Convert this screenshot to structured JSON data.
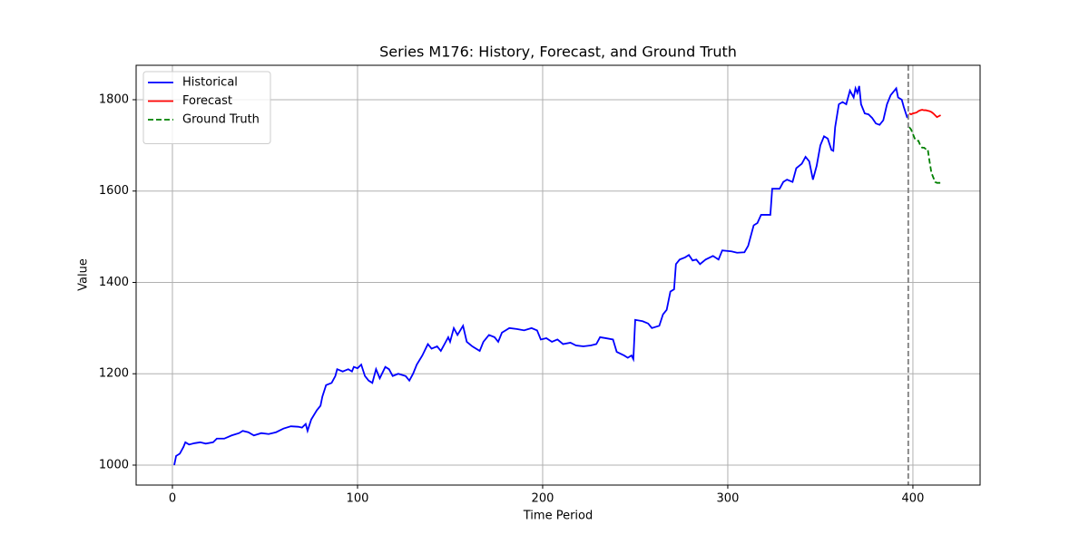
{
  "chart_data": {
    "type": "line",
    "title": "Series M176: History, Forecast, and Ground Truth",
    "xlabel": "Time Period",
    "ylabel": "Value",
    "xlim": [
      -19.6,
      436.3
    ],
    "ylim": [
      956.3,
      1875.4
    ],
    "xticks": [
      0,
      100,
      200,
      300,
      400
    ],
    "yticks": [
      1000,
      1200,
      1400,
      1600,
      1800
    ],
    "grid": true,
    "legend": "upper left",
    "vline_x": 397.5,
    "vline_color": "#808080",
    "series": [
      {
        "name": "Historical",
        "color": "#0000ff",
        "linestyle": "solid",
        "x": [
          1,
          2,
          4,
          6,
          7,
          9,
          12,
          15,
          18,
          22,
          24,
          28,
          32,
          36,
          38,
          41,
          44,
          48,
          52,
          56,
          60,
          64,
          68,
          70,
          72,
          73,
          75,
          78,
          80,
          81,
          83,
          86,
          88,
          89,
          92,
          95,
          97,
          98,
          100,
          102,
          104,
          106,
          108,
          110,
          112,
          115,
          117,
          119,
          122,
          126,
          128,
          130,
          132,
          135,
          138,
          140,
          143,
          145,
          147,
          149,
          150,
          152,
          154,
          157,
          159,
          162,
          166,
          168,
          171,
          174,
          176,
          178,
          180,
          182,
          186,
          190,
          194,
          197,
          199,
          202,
          205,
          208,
          211,
          215,
          218,
          222,
          226,
          229,
          231,
          234,
          238,
          240,
          244,
          246,
          248,
          249,
          250,
          254,
          257,
          259,
          263,
          265,
          267,
          269,
          271,
          272,
          274,
          277,
          279,
          281,
          283,
          285,
          288,
          292,
          295,
          297,
          302,
          305,
          309,
          311,
          314,
          316,
          318,
          323,
          324,
          328,
          330,
          332,
          335,
          337,
          340,
          342,
          344,
          346,
          348,
          350,
          352,
          354,
          356,
          357,
          358,
          360,
          362,
          364,
          366,
          368,
          369,
          370,
          371,
          372,
          374,
          376,
          378,
          380,
          382,
          384,
          386,
          388,
          390,
          391,
          392,
          394,
          395,
          397
        ],
        "values": [
          1000,
          1020,
          1025,
          1040,
          1050,
          1045,
          1048,
          1050,
          1047,
          1050,
          1058,
          1058,
          1065,
          1070,
          1075,
          1072,
          1065,
          1070,
          1068,
          1072,
          1080,
          1085,
          1084,
          1082,
          1090,
          1075,
          1100,
          1120,
          1130,
          1150,
          1175,
          1180,
          1195,
          1210,
          1205,
          1210,
          1205,
          1215,
          1212,
          1220,
          1195,
          1185,
          1180,
          1210,
          1190,
          1215,
          1210,
          1195,
          1200,
          1195,
          1185,
          1200,
          1220,
          1240,
          1265,
          1255,
          1260,
          1250,
          1265,
          1280,
          1270,
          1300,
          1285,
          1305,
          1270,
          1260,
          1250,
          1270,
          1285,
          1280,
          1270,
          1290,
          1295,
          1300,
          1298,
          1295,
          1300,
          1295,
          1275,
          1278,
          1270,
          1275,
          1265,
          1268,
          1262,
          1260,
          1262,
          1265,
          1280,
          1278,
          1275,
          1248,
          1240,
          1235,
          1240,
          1232,
          1318,
          1315,
          1310,
          1300,
          1305,
          1330,
          1340,
          1380,
          1385,
          1440,
          1450,
          1455,
          1460,
          1448,
          1450,
          1440,
          1450,
          1458,
          1450,
          1470,
          1468,
          1465,
          1466,
          1480,
          1525,
          1530,
          1548,
          1548,
          1605,
          1605,
          1620,
          1625,
          1620,
          1650,
          1660,
          1675,
          1665,
          1625,
          1655,
          1700,
          1720,
          1715,
          1690,
          1688,
          1740,
          1790,
          1795,
          1790,
          1820,
          1805,
          1825,
          1815,
          1830,
          1790,
          1770,
          1768,
          1760,
          1748,
          1745,
          1755,
          1790,
          1810,
          1820,
          1825,
          1805,
          1800,
          1785,
          1760
        ]
      },
      {
        "name": "Forecast",
        "color": "#ff0000",
        "linestyle": "solid",
        "x": [
          398,
          399,
          400,
          401,
          402,
          403,
          404,
          405,
          406,
          407,
          408,
          409,
          410,
          411,
          412,
          413,
          414,
          415
        ],
        "values": [
          1770,
          1768,
          1770,
          1771,
          1772,
          1775,
          1777,
          1778,
          1777,
          1777,
          1776,
          1775,
          1773,
          1770,
          1766,
          1762,
          1764,
          1766
        ]
      },
      {
        "name": "Ground Truth",
        "color": "#008000",
        "linestyle": "dashed",
        "x": [
          398,
          399,
          400,
          401,
          402,
          403,
          404,
          405,
          406,
          407,
          408,
          409,
          410,
          411,
          412,
          413,
          414,
          415
        ],
        "values": [
          1740,
          1735,
          1725,
          1715,
          1710,
          1710,
          1700,
          1695,
          1695,
          1692,
          1692,
          1665,
          1640,
          1630,
          1620,
          1618,
          1618,
          1618
        ]
      }
    ]
  }
}
